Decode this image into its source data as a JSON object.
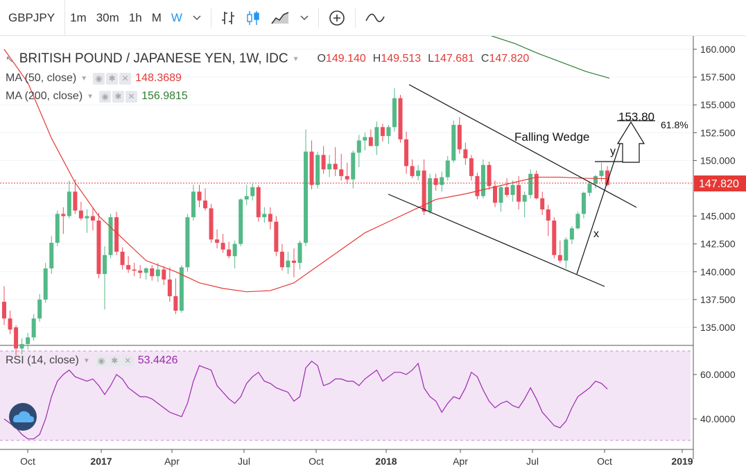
{
  "toolbar": {
    "symbol": "GBPJPY",
    "intervals": [
      "1m",
      "30m",
      "1h",
      "M",
      "W"
    ],
    "active_interval": "W",
    "chevron": "⌄"
  },
  "legend": {
    "title": "BRITISH POUND / JAPANESE YEN, 1W, IDC",
    "open_label": "O",
    "open": "149.140",
    "high_label": "H",
    "high": "149.513",
    "low_label": "L",
    "low": "147.681",
    "close_label": "C",
    "close": "147.820",
    "ma50_label": "MA (50, close)",
    "ma50_value": "148.3689",
    "ma200_label": "MA (200, close)",
    "ma200_value": "156.9815",
    "rsi_label": "RSI (14, close)",
    "rsi_value": "53.4426"
  },
  "annotations": {
    "pattern": "Falling Wedge",
    "target": "153.80",
    "fib": "61.8%",
    "wave_x": "x",
    "wave_y": "y"
  },
  "price_axis": {
    "ticks": [
      "160.000",
      "157.500",
      "155.000",
      "152.500",
      "150.000",
      "147.820",
      "145.000",
      "142.500",
      "140.000",
      "137.500",
      "135.000"
    ],
    "current": "147.820"
  },
  "rsi_axis": {
    "ticks": [
      "60.0000",
      "40.0000"
    ]
  },
  "time_axis": {
    "labels": [
      "Oct",
      "2017",
      "Apr",
      "Jul",
      "Oct",
      "2018",
      "Apr",
      "Jul",
      "Oct",
      "2019"
    ]
  },
  "colors": {
    "up": "#53b987",
    "down": "#eb4d5c",
    "ma50": "#e53935",
    "ma200": "#2e7d32",
    "rsi": "#9c27b0",
    "rsi_bg": "#f3e5f5",
    "accent": "#2196f3"
  },
  "icons": [
    "bar-chart-icon",
    "candles-icon",
    "area-chart-icon",
    "chevron-down-icon",
    "crosshair-plus-icon",
    "compare-wave-icon",
    "logo-cloud-icon"
  ],
  "chart_data": [
    {
      "type": "candlestick",
      "title": "BRITISH POUND / JAPANESE YEN, 1W, IDC",
      "ylim": [
        133,
        161
      ],
      "series_ma": [
        {
          "name": "MA (50, close)",
          "values": [
            160,
            157,
            152,
            148,
            145,
            143,
            141,
            140,
            139,
            138.5,
            138.2,
            138.3,
            139,
            140.5,
            142,
            143.5,
            144.5,
            145.5,
            146.5,
            147,
            147.5,
            148,
            148.5,
            148.5,
            148.4,
            148.37
          ]
        },
        {
          "name": "MA (200, close)",
          "values": [
            162,
            161.2,
            160.5,
            159.6,
            158.8,
            158,
            157.4
          ]
        }
      ],
      "weeks": [
        [
          137.3,
          138.7,
          135.2,
          135.8
        ],
        [
          135.8,
          136.5,
          134.4,
          134.8
        ],
        [
          135,
          135.2,
          132.5,
          133.1
        ],
        [
          133.1,
          134.0,
          132.6,
          133.5
        ],
        [
          133.5,
          134.5,
          133.0,
          134.1
        ],
        [
          134.1,
          136.2,
          133.8,
          135.8
        ],
        [
          135.8,
          138.0,
          135.5,
          137.5
        ],
        [
          137.5,
          140.8,
          137.2,
          140.3
        ],
        [
          140.3,
          143.2,
          139.8,
          142.6
        ],
        [
          142.6,
          145.5,
          142.3,
          145.2
        ],
        [
          145.2,
          145.8,
          143.4,
          145.0
        ],
        [
          145,
          148.2,
          144.8,
          147.2
        ],
        [
          147.2,
          148.3,
          145.2,
          145.5
        ],
        [
          145.5,
          146.3,
          144.6,
          144.8
        ],
        [
          144.8,
          145.6,
          143.5,
          145.0
        ],
        [
          145,
          145.8,
          143.7,
          144.6
        ],
        [
          144.6,
          145.3,
          139.4,
          139.8
        ],
        [
          139.8,
          142.3,
          136.6,
          141.5
        ],
        [
          141.5,
          145.2,
          141.2,
          144.9
        ],
        [
          144.9,
          145.4,
          141.5,
          141.8
        ],
        [
          141.8,
          142.2,
          140.2,
          140.6
        ],
        [
          140.6,
          141.4,
          139.9,
          140.2
        ],
        [
          140.2,
          140.8,
          139.6,
          140.1
        ],
        [
          140.1,
          140.6,
          139.4,
          139.9
        ],
        [
          139.9,
          140.4,
          139.3,
          140.3
        ],
        [
          140.3,
          140.6,
          139.2,
          139.6
        ],
        [
          139.6,
          140.8,
          139.1,
          140.2
        ],
        [
          140.2,
          140.5,
          138.8,
          139.3
        ],
        [
          139.3,
          140.4,
          137.3,
          137.8
        ],
        [
          137.8,
          139.4,
          136.2,
          136.5
        ],
        [
          136.5,
          140.6,
          136.3,
          140.4
        ],
        [
          140.4,
          145.2,
          140.0,
          144.9
        ],
        [
          144.9,
          147.8,
          144.6,
          147.2
        ],
        [
          147.2,
          147.8,
          145.8,
          146.4
        ],
        [
          146.4,
          147.5,
          145.5,
          145.7
        ],
        [
          145.7,
          146.1,
          142.6,
          142.9
        ],
        [
          142.9,
          143.8,
          142.1,
          142.6
        ],
        [
          142.6,
          143.4,
          141.7,
          142.0
        ],
        [
          142,
          142.7,
          141.2,
          141.4
        ],
        [
          141.4,
          142.8,
          140.3,
          142.5
        ],
        [
          142.5,
          146.6,
          142.3,
          146.5
        ],
        [
          146.5,
          147.8,
          146.0,
          146.8
        ],
        [
          146.8,
          147.9,
          146.4,
          147.6
        ],
        [
          147.6,
          147.8,
          144.5,
          144.9
        ],
        [
          144.9,
          145.8,
          144.4,
          145.2
        ],
        [
          145.2,
          145.8,
          143.8,
          144.5
        ],
        [
          144.5,
          145.0,
          141.4,
          141.8
        ],
        [
          141.8,
          142.5,
          140.1,
          140.4
        ],
        [
          140.4,
          141.8,
          139.8,
          141.0
        ],
        [
          141,
          142.1,
          139.5,
          140.8
        ],
        [
          140.8,
          142.8,
          140.2,
          142.6
        ],
        [
          142.6,
          152.8,
          142.3,
          150.8
        ],
        [
          150.8,
          151.8,
          147.4,
          147.8
        ],
        [
          147.8,
          150.8,
          147.5,
          150.5
        ],
        [
          150.5,
          151.3,
          148.8,
          149.2
        ],
        [
          149.2,
          150.5,
          148.5,
          149.7
        ],
        [
          149.7,
          151.2,
          148.6,
          149.2
        ],
        [
          149.2,
          150.6,
          148.2,
          148.6
        ],
        [
          148.6,
          149.8,
          147.9,
          148.3
        ],
        [
          148.3,
          150.9,
          147.5,
          150.7
        ],
        [
          150.7,
          152.3,
          149.4,
          151.8
        ],
        [
          151.8,
          152.5,
          150.9,
          152.1
        ],
        [
          152.1,
          152.8,
          151.7,
          151.3
        ],
        [
          151.3,
          153.5,
          150.5,
          153.0
        ],
        [
          153,
          153.3,
          151.7,
          152.2
        ],
        [
          152.2,
          153.2,
          151.5,
          153.0
        ],
        [
          153,
          156.5,
          152.6,
          155.6
        ],
        [
          155.6,
          155.9,
          151.6,
          151.9
        ],
        [
          151.9,
          152.6,
          148.8,
          149.5
        ],
        [
          149.5,
          150.1,
          148.4,
          148.6
        ],
        [
          148.6,
          149.6,
          148.2,
          149.1
        ],
        [
          149.1,
          150.1,
          145.1,
          145.4
        ],
        [
          145.4,
          148.8,
          145.2,
          148.4
        ],
        [
          148.4,
          148.8,
          147.3,
          147.8
        ],
        [
          147.8,
          149.0,
          147.2,
          148.5
        ],
        [
          148.5,
          150.4,
          148.2,
          150.0
        ],
        [
          150,
          153.6,
          149.8,
          153.2
        ],
        [
          153.2,
          153.9,
          150.6,
          151.0
        ],
        [
          151,
          151.6,
          149.6,
          150.2
        ],
        [
          150.2,
          150.5,
          148.2,
          148.6
        ],
        [
          148.6,
          148.9,
          146.5,
          146.8
        ],
        [
          146.8,
          150.1,
          146.6,
          149.6
        ],
        [
          149.6,
          149.9,
          147.4,
          147.7
        ],
        [
          147.7,
          148.2,
          145.8,
          146.2
        ],
        [
          146.2,
          147.8,
          145.4,
          147.6
        ],
        [
          147.6,
          148.4,
          146.7,
          146.9
        ],
        [
          146.9,
          148.2,
          146.3,
          147.8
        ],
        [
          147.8,
          148.6,
          145.6,
          146.3
        ],
        [
          146.3,
          147.2,
          144.9,
          146.9
        ],
        [
          146.9,
          149.2,
          146.6,
          148.8
        ],
        [
          148.8,
          149.1,
          146.5,
          146.6
        ],
        [
          146.6,
          147.2,
          145.1,
          145.6
        ],
        [
          145.6,
          146.0,
          143.2,
          144.6
        ],
        [
          144.6,
          144.9,
          141.2,
          141.5
        ],
        [
          141.5,
          142.8,
          140.8,
          141.0
        ],
        [
          141,
          143.1,
          140.3,
          142.9
        ],
        [
          142.9,
          144.1,
          142.5,
          143.9
        ],
        [
          143.9,
          145.4,
          143.8,
          145.2
        ],
        [
          145.2,
          147.2,
          144.8,
          147.1
        ],
        [
          147.1,
          148.1,
          146.8,
          147.9
        ],
        [
          147.9,
          148.7,
          147.5,
          148.6
        ],
        [
          148.6,
          149.8,
          148.1,
          149.1
        ],
        [
          149.1,
          149.5,
          147.7,
          147.8
        ]
      ]
    },
    {
      "type": "line",
      "title": "RSI (14, close)",
      "ylim": [
        29,
        72
      ],
      "values": [
        40,
        38,
        36,
        33,
        31,
        31,
        33,
        40,
        50,
        57,
        60,
        62,
        59,
        58,
        57,
        58,
        55,
        51,
        55,
        60,
        58,
        54,
        52,
        50,
        50,
        49,
        47,
        45,
        43,
        42,
        41,
        47,
        57,
        64,
        63,
        62,
        55,
        52,
        49,
        47,
        50,
        56,
        59,
        61,
        57,
        56,
        54,
        53,
        52,
        48,
        50,
        63,
        66,
        64,
        55,
        56,
        58,
        58,
        57,
        57,
        55,
        58,
        60,
        62,
        57,
        59,
        61,
        61,
        60,
        62,
        65,
        54,
        50,
        48,
        43,
        47,
        50,
        49,
        54,
        61,
        59,
        53,
        48,
        45,
        47,
        48,
        46,
        45,
        49,
        54,
        49,
        43,
        40,
        37,
        36,
        39,
        45,
        50,
        52,
        54,
        57,
        56,
        53.4426
      ]
    }
  ]
}
